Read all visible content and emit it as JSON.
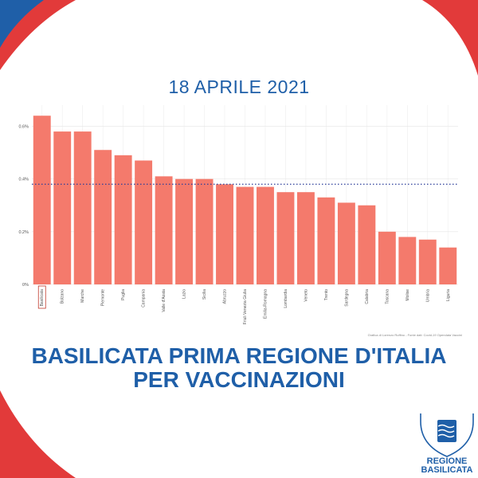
{
  "header": {
    "date": "18 APRILE 2021"
  },
  "headline": {
    "line1": "BASILICATA PRIMA REGIONE D'ITALIA",
    "line2": "PER VACCINAZIONI"
  },
  "credit": "Grafica di Lorenzo Ruffino - Fonte dati: Covid-19 Opendata Vaccini",
  "logo": {
    "line1": "REGIONE",
    "line2": "BASILICATA"
  },
  "colors": {
    "bar": "#f47a6c",
    "title": "#1f5fa8",
    "corner_red": "#e23a3a",
    "corner_blue": "#1f5fa8",
    "avg_line": "#2c3e9a"
  },
  "chart_data": {
    "type": "bar",
    "categories": [
      "Basilicata",
      "Bolzano",
      "Marche",
      "Piemonte",
      "Puglia",
      "Campania",
      "Valle d'Aosta",
      "Lazio",
      "Sicilia",
      "Abruzzo",
      "Friuli Venezia Giulia",
      "Emilia-Romagna",
      "Lombardia",
      "Veneto",
      "Trento",
      "Sardegna",
      "Calabria",
      "Toscana",
      "Molise",
      "Umbria",
      "Liguria"
    ],
    "values": [
      0.64,
      0.58,
      0.58,
      0.51,
      0.49,
      0.47,
      0.41,
      0.4,
      0.4,
      0.38,
      0.37,
      0.37,
      0.35,
      0.35,
      0.33,
      0.31,
      0.3,
      0.2,
      0.18,
      0.17,
      0.14
    ],
    "highlight": "Basilicata",
    "average_line": 0.38,
    "ylim": [
      0,
      0.68
    ],
    "yticks": [
      0,
      0.2,
      0.4,
      0.6
    ],
    "ytick_labels": [
      "0%",
      "0.2%",
      "0.4%",
      "0.6%"
    ],
    "grid": true
  }
}
